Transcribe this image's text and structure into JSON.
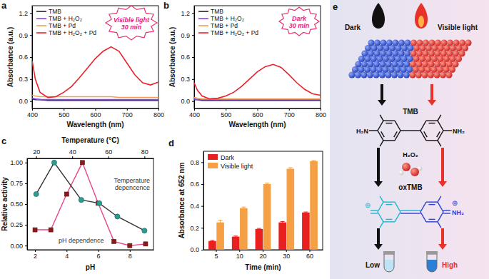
{
  "chart_data": [
    {
      "type": "line",
      "title": "a",
      "x_label": "Wavelength (nm)",
      "y_label": "Absorbance (a.u.)",
      "annotations": [
        "Visible light",
        "30 min"
      ],
      "legend": "upper left",
      "x": [
        400,
        410,
        425,
        450,
        475,
        500,
        525,
        550,
        575,
        600,
        625,
        650,
        675,
        700,
        725,
        750,
        775,
        800
      ],
      "xlim": [
        400,
        800
      ],
      "xticks": [
        400,
        500,
        600,
        700,
        800
      ],
      "ylim": [
        -0.1,
        1.3
      ],
      "yticks": [
        {
          "value": 0,
          "label": "0.0"
        },
        {
          "value": 0.3,
          "label": "0.3"
        },
        {
          "value": 0.6,
          "label": "0.6"
        },
        {
          "value": 0.9,
          "label": "0.9"
        },
        {
          "value": 1.2,
          "label": "1.2"
        }
      ],
      "series": [
        {
          "name": "TMB",
          "color": "#222222",
          "values": [
            0.03,
            0.02,
            0.02,
            0.01,
            0.01,
            0.01,
            0.01,
            0.01,
            0.01,
            0.01,
            0.01,
            0.01,
            0.01,
            0.01,
            0.01,
            0.01,
            0.01,
            0.01
          ]
        },
        {
          "name": "TMB + H₂O₂",
          "color": "#8a3ffc",
          "values": [
            0.04,
            0.03,
            0.02,
            0.02,
            0.02,
            0.02,
            0.02,
            0.02,
            0.02,
            0.02,
            0.02,
            0.02,
            0.02,
            0.02,
            0.02,
            0.02,
            0.02,
            0.02
          ]
        },
        {
          "name": "TMB + Pd",
          "color": "#f0a050",
          "values": [
            0.08,
            0.07,
            0.06,
            0.06,
            0.06,
            0.06,
            0.06,
            0.06,
            0.06,
            0.06,
            0.06,
            0.06,
            0.05,
            0.05,
            0.05,
            0.05,
            0.05,
            0.05
          ]
        },
        {
          "name": "TMB + H₂O₂ + Pd",
          "color": "#e8222a",
          "values": [
            0.55,
            0.3,
            0.12,
            0.05,
            0.06,
            0.12,
            0.2,
            0.32,
            0.45,
            0.58,
            0.68,
            0.74,
            0.68,
            0.52,
            0.36,
            0.25,
            0.22,
            0.26
          ]
        }
      ]
    },
    {
      "type": "line",
      "title": "b",
      "x_label": "Wavelength (nm)",
      "y_label": "Absorbance (a.u.)",
      "annotations": [
        "Dark",
        "30 min"
      ],
      "legend": "upper left",
      "x": [
        400,
        410,
        425,
        450,
        475,
        500,
        525,
        550,
        575,
        600,
        625,
        650,
        675,
        700,
        725,
        750,
        775,
        800
      ],
      "xlim": [
        400,
        800
      ],
      "xticks": [
        400,
        500,
        600,
        700,
        800
      ],
      "ylim": [
        -0.1,
        1.3
      ],
      "yticks": [
        {
          "value": 0,
          "label": "0.0"
        },
        {
          "value": 0.3,
          "label": "0.3"
        },
        {
          "value": 0.6,
          "label": "0.6"
        },
        {
          "value": 0.9,
          "label": "0.9"
        },
        {
          "value": 1.2,
          "label": "1.2"
        }
      ],
      "series": [
        {
          "name": "TMB",
          "color": "#222222",
          "values": [
            0.02,
            0.02,
            0.01,
            0.01,
            0.01,
            0.01,
            0.01,
            0.01,
            0.01,
            0.01,
            0.01,
            0.01,
            0.01,
            0.01,
            0.01,
            0.01,
            0.01,
            0.01
          ]
        },
        {
          "name": "TMB + H₂O₂",
          "color": "#8a3ffc",
          "values": [
            0.03,
            0.02,
            0.02,
            0.02,
            0.02,
            0.02,
            0.02,
            0.02,
            0.02,
            0.02,
            0.02,
            0.02,
            0.02,
            0.02,
            0.02,
            0.02,
            0.02,
            0.02
          ]
        },
        {
          "name": "TMB + Pd",
          "color": "#f0a050",
          "values": [
            0.05,
            0.04,
            0.03,
            0.03,
            0.03,
            0.03,
            0.03,
            0.03,
            0.03,
            0.03,
            0.03,
            0.03,
            0.03,
            0.03,
            0.03,
            0.03,
            0.03,
            0.03
          ]
        },
        {
          "name": "TMB + H₂O₂ + Pd",
          "color": "#e8222a",
          "values": [
            0.25,
            0.15,
            0.07,
            0.03,
            0.04,
            0.07,
            0.12,
            0.2,
            0.3,
            0.4,
            0.47,
            0.5,
            0.46,
            0.36,
            0.25,
            0.16,
            0.1,
            0.08
          ]
        }
      ]
    },
    {
      "type": "line",
      "title": "c",
      "x_label": "pH",
      "x2_label": "Temperature (°C)",
      "y_label": "Relative activity",
      "annotations": [
        "Temperature",
        "depencence",
        "pH dependence"
      ],
      "xlim": [
        1.5,
        9.5
      ],
      "xticks": [
        2,
        4,
        6,
        8
      ],
      "x2lim": [
        15,
        85
      ],
      "x2ticks": [
        20,
        40,
        60,
        80
      ],
      "ylim": [
        -0.05,
        1.05
      ],
      "yticks": [
        {
          "value": 0,
          "label": "0.00"
        },
        {
          "value": 0.25,
          "label": "0.25"
        },
        {
          "value": 0.5,
          "label": "0.50"
        },
        {
          "value": 0.75,
          "label": "0.75"
        },
        {
          "value": 1,
          "label": "1.00"
        }
      ],
      "series": [
        {
          "color": "#e8458b",
          "marker": "square",
          "x": [
            2,
            3,
            4,
            5,
            6,
            7,
            8,
            9
          ],
          "values": [
            0.19,
            0.19,
            0.62,
            1.0,
            0.51,
            0.05,
            0.0,
            0.02
          ]
        },
        {
          "color": "#2a9d8f",
          "marker": "circle",
          "axis": "x2",
          "x": [
            20,
            30,
            45,
            55,
            65,
            80
          ],
          "values": [
            0.62,
            1.0,
            0.55,
            0.51,
            0.35,
            0.18
          ]
        }
      ]
    },
    {
      "type": "bar",
      "title": "d",
      "x_label": "Time (min)",
      "y_label": "Absorbance at 652 nm",
      "legend": "upper left",
      "categories": [
        "5",
        "10",
        "20",
        "30",
        "60"
      ],
      "ylim": [
        0,
        0.9
      ],
      "yticks": [
        {
          "value": 0,
          "label": "0.0"
        },
        {
          "value": 0.2,
          "label": "0.2"
        },
        {
          "value": 0.4,
          "label": "0.4"
        },
        {
          "value": 0.6,
          "label": "0.6"
        },
        {
          "value": 0.8,
          "label": "0.8"
        }
      ],
      "series": [
        {
          "name": "Dark",
          "color": "#e8201f",
          "values": [
            0.08,
            0.12,
            0.19,
            0.25,
            0.34
          ],
          "errors": [
            0.005,
            0.005,
            0.005,
            0.008,
            0.005
          ]
        },
        {
          "name": "Visible light",
          "color": "#f5a045",
          "values": [
            0.25,
            0.38,
            0.6,
            0.74,
            0.81
          ],
          "errors": [
            0.02,
            0.01,
            0.01,
            0.01,
            0.005
          ]
        }
      ]
    }
  ],
  "diagram": {
    "title": "e",
    "conditions": [
      "Dark",
      "Visible light"
    ],
    "substrate": "TMB",
    "amine_left": "H₂N",
    "amine_right": "NH₂",
    "oxidant": "H₂O₂",
    "product": "oxTMB",
    "charge": "⊕",
    "outcomes": [
      "Low",
      "High"
    ]
  }
}
